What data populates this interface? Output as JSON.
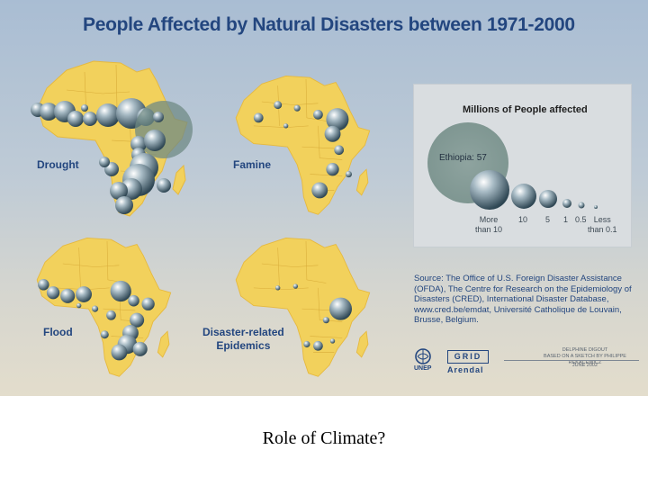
{
  "title": "People Affected by Natural Disasters between 1971-2000",
  "panels": {
    "drought": {
      "label_lines": [
        "Drought"
      ]
    },
    "famine": {
      "label_lines": [
        "Famine"
      ]
    },
    "flood": {
      "label_lines": [
        "Flood"
      ]
    },
    "epidemics": {
      "label_lines": [
        "Disaster-related",
        "Epidemics"
      ]
    }
  },
  "legend": {
    "title": "Millions of People affected",
    "callout": "Ethiopia: 57",
    "items": [
      {
        "label_lines": [
          "More",
          "than 10"
        ]
      },
      {
        "label_lines": [
          "10"
        ]
      },
      {
        "label_lines": [
          "5"
        ]
      },
      {
        "label_lines": [
          "1"
        ]
      },
      {
        "label_lines": [
          "0.5"
        ]
      },
      {
        "label_lines": [
          "Less",
          "than 0.1"
        ]
      }
    ]
  },
  "source": "Source: The Office of U.S. Foreign Disaster Assistance (OFDA), The Centre for Research on the Epidemiology of Disasters (CRED), International Disaster Database, www.cred.be/emdat, Université Catholique de Louvain, Brusse, Belgium.",
  "logos": {
    "unep": "UNEP",
    "grid": "GRID",
    "arendal": "Arendal"
  },
  "credit": {
    "author": "DELPHINE DIGOUT",
    "based_on": "BASED ON A SKETCH BY PHILIPPE REKACEWICZ",
    "date": "JUNE 2002"
  },
  "caption": "Role of Climate?",
  "colors": {
    "land": "#f2d15c",
    "bubble": "#5f7a8a",
    "ethiopia_bubble": "#6f8a84",
    "title": "#23467f"
  }
}
